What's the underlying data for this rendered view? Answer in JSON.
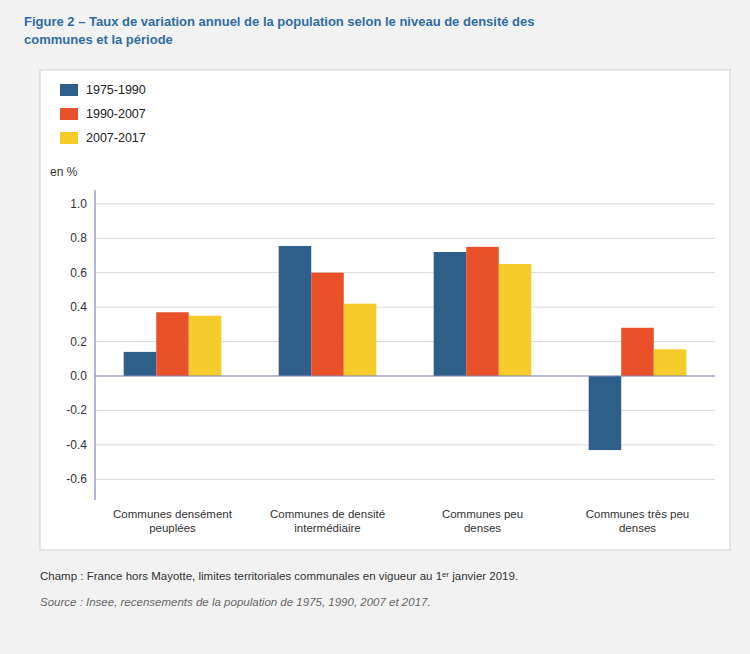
{
  "chart_data": {
    "type": "bar",
    "title": "Figure 2 – Taux de variation annuel de la population selon le niveau de densité des\ncommunes et la période",
    "ylabel": "en %",
    "categories": [
      "Communes densément\npeuplées",
      "Communes de densité\nintermédiaire",
      "Communes peu\ndenses",
      "Communes très peu\ndenses"
    ],
    "series": [
      {
        "name": "1975-1990",
        "color": "#2e5f8a",
        "values": [
          0.14,
          0.755,
          0.72,
          -0.43
        ]
      },
      {
        "name": "1990-2007",
        "color": "#e8512a",
        "values": [
          0.37,
          0.6,
          0.75,
          0.28
        ]
      },
      {
        "name": "2007-2017",
        "color": "#f5cc2a",
        "values": [
          0.35,
          0.42,
          0.65,
          0.155
        ]
      }
    ],
    "ylim": [
      -0.72,
      1.08
    ],
    "yticks": [
      -0.6,
      -0.4,
      -0.2,
      {
        "value": 0.0,
        "label": "0.0"
      },
      0.2,
      0.4,
      0.6,
      0.8,
      {
        "value": 1.0,
        "label": "1.0"
      }
    ],
    "grid": true,
    "legend": "upper-left",
    "annotations": [
      "Champ : France hors Mayotte, limites territoriales communales en vigueur au 1ᵉʳ janvier 2019.",
      "Source : Insee, recensements de la population de 1975, 1990, 2007 et 2017."
    ]
  }
}
